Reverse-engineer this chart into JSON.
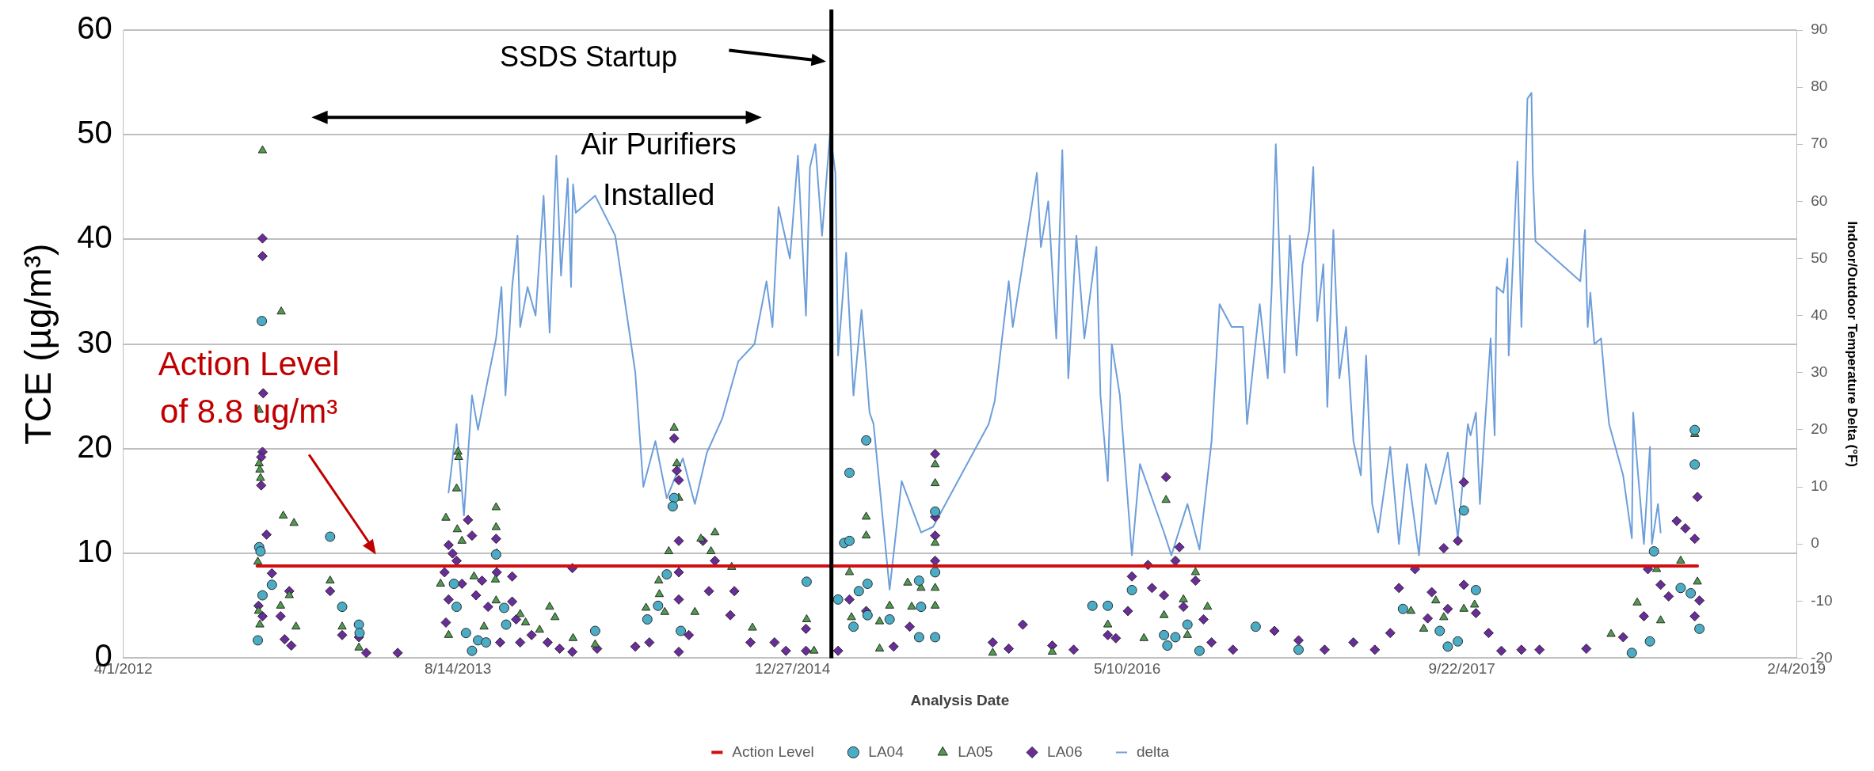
{
  "chart_data": {
    "type": "scatter",
    "xlabel": "Analysis Date",
    "ylabel": "TCE (µg/m³)",
    "y2label": "Indoor/Outdoor Temperature Delta (°F)",
    "annotations": [
      "Air Purifiers\nInstalled",
      "Action Level\nof 8.8 ug/m³",
      "SSDS Startup"
    ],
    "ref_lines": [
      {
        "axis": "x",
        "value": "2015-02-23",
        "color": "#000000"
      }
    ],
    "xlim": [
      "2012-04-01",
      "2019-02-04"
    ],
    "xticks": [
      {
        "value": "2012-04-01",
        "label": "4/1/2012"
      },
      {
        "value": "2013-08-14",
        "label": "8/14/2013"
      },
      {
        "value": "2014-12-27",
        "label": "12/27/2014"
      },
      {
        "value": "2016-05-10",
        "label": "5/10/2016"
      },
      {
        "value": "2017-09-22",
        "label": "9/22/2017"
      },
      {
        "value": "2019-02-04",
        "label": "2/4/2019"
      }
    ],
    "ylim": [
      0,
      60
    ],
    "yticks": [
      0,
      10,
      20,
      30,
      40,
      50,
      60
    ],
    "y2lim": [
      -20,
      90
    ],
    "y2ticks": [
      -20,
      -10,
      0,
      10,
      20,
      30,
      40,
      50,
      60,
      70,
      80,
      90
    ],
    "grid": "y",
    "legend": "bottom",
    "series": [
      {
        "name": "Action Level",
        "type": "line",
        "color": "#d01010",
        "x": [
          "2012-10-18",
          "2018-09-09"
        ],
        "values": [
          8.8,
          8.8
        ]
      },
      {
        "name": "LA04",
        "marker": "circle",
        "color": "#4bacc6",
        "x": [
          "2012-10-25",
          "2012-10-21",
          "2012-10-23",
          "2012-10-19",
          "2012-11-09",
          "2012-10-26",
          "2013-02-04",
          "2013-02-22",
          "2013-03-19",
          "2013-03-20",
          "2013-08-08",
          "2013-08-12",
          "2013-08-26",
          "2013-09-04",
          "2013-09-13",
          "2013-09-25",
          "2013-10-10",
          "2013-10-22",
          "2013-10-25",
          "2014-03-07",
          "2014-07-03",
          "2014-07-01",
          "2014-06-22",
          "2014-06-09",
          "2014-05-24",
          "2014-07-13",
          "2015-01-17",
          "2015-03-05",
          "2015-03-14",
          "2015-03-22",
          "2015-03-22",
          "2015-04-16",
          "2015-04-05",
          "2015-04-18",
          "2015-04-18",
          "2015-03-28",
          "2015-05-21",
          "2015-07-04",
          "2015-07-07",
          "2015-07-28",
          "2015-07-28",
          "2015-07-28",
          "2015-07-04",
          "2016-03-19",
          "2016-04-11",
          "2016-05-17",
          "2016-07-04",
          "2016-07-21",
          "2016-07-09",
          "2016-08-08",
          "2016-08-26",
          "2016-11-18",
          "2017-01-21",
          "2017-06-26",
          "2017-09-25",
          "2017-09-01",
          "2017-10-13",
          "2017-09-16",
          "2017-08-20",
          "2018-06-03",
          "2018-06-30",
          "2018-07-06",
          "2018-08-15",
          "2018-08-30",
          "2018-09-05",
          "2018-09-05",
          "2018-09-12"
        ],
        "values": [
          32.2,
          10.6,
          10.2,
          1.7,
          7.0,
          6.0,
          11.6,
          4.9,
          3.2,
          2.4,
          7.1,
          4.9,
          2.4,
          0.7,
          1.7,
          1.5,
          9.9,
          4.8,
          3.2,
          2.6,
          15.3,
          14.5,
          8.0,
          5.0,
          3.7,
          2.6,
          7.3,
          5.6,
          11.0,
          11.2,
          17.7,
          20.8,
          6.4,
          7.1,
          4.1,
          3.0,
          3.7,
          7.4,
          4.9,
          14.0,
          8.2,
          2.0,
          2.0,
          5.0,
          5.0,
          6.5,
          2.2,
          2.0,
          1.2,
          3.2,
          0.7,
          3.0,
          0.8,
          4.7,
          14.1,
          1.1,
          6.5,
          1.6,
          2.6,
          0.5,
          1.6,
          10.2,
          6.7,
          6.2,
          18.5,
          21.8,
          2.8
        ]
      },
      {
        "name": "LA05",
        "marker": "triangle",
        "color": "#4e9a4e",
        "x": [
          "2012-10-26",
          "2012-11-23",
          "2012-10-21",
          "2012-10-21",
          "2012-10-22",
          "2012-10-23",
          "2012-11-26",
          "2012-12-12",
          "2012-10-19",
          "2012-10-20",
          "2012-10-22",
          "2012-11-22",
          "2012-12-05",
          "2012-12-15",
          "2013-02-04",
          "2013-02-22",
          "2013-03-19",
          "2013-08-14",
          "2013-08-15",
          "2013-08-12",
          "2013-07-27",
          "2013-08-13",
          "2013-08-20",
          "2013-07-19",
          "2013-07-31",
          "2013-09-07",
          "2013-10-10",
          "2013-10-10",
          "2013-10-11",
          "2013-10-09",
          "2013-10-10",
          "2013-11-15",
          "2013-11-23",
          "2013-12-14",
          "2013-12-29",
          "2014-01-06",
          "2014-02-02",
          "2014-03-07",
          "2013-09-22",
          "2014-07-03",
          "2014-07-07",
          "2014-07-10",
          "2014-06-25",
          "2014-06-10",
          "2014-06-11",
          "2014-05-22",
          "2014-06-19",
          "2014-08-12",
          "2014-08-27",
          "2014-09-02",
          "2014-09-27",
          "2014-08-03",
          "2014-10-28",
          "2015-01-17",
          "2015-01-28",
          "2015-03-22",
          "2015-04-16",
          "2015-04-16",
          "2015-03-25",
          "2015-05-06",
          "2015-05-21",
          "2015-06-17",
          "2015-06-23",
          "2015-07-07",
          "2015-07-28",
          "2015-07-28",
          "2015-07-28",
          "2015-07-28",
          "2015-07-28",
          "2015-05-06",
          "2015-10-22",
          "2016-01-19",
          "2016-04-11",
          "2016-06-04",
          "2016-07-07",
          "2016-07-04",
          "2016-08-02",
          "2016-08-20",
          "2016-09-07",
          "2016-08-08",
          "2017-07-08",
          "2017-07-27",
          "2017-08-14",
          "2017-08-26",
          "2017-09-25",
          "2017-10-11",
          "2018-05-03",
          "2018-06-11",
          "2018-07-10",
          "2018-07-16",
          "2018-08-15",
          "2018-09-09",
          "2018-09-05"
        ],
        "values": [
          48.5,
          33.1,
          23.7,
          18.6,
          18.0,
          17.2,
          13.6,
          12.9,
          9.2,
          4.5,
          3.2,
          5.0,
          6.0,
          3.0,
          7.4,
          3.0,
          1.0,
          19.7,
          19.2,
          16.2,
          13.4,
          12.3,
          11.2,
          7.1,
          2.2,
          7.8,
          14.4,
          12.5,
          10.0,
          7.5,
          5.5,
          4.2,
          3.4,
          2.7,
          4.9,
          3.9,
          1.9,
          1.3,
          3.0,
          22.0,
          18.6,
          15.3,
          10.2,
          7.4,
          6.1,
          4.8,
          4.4,
          11.4,
          10.2,
          12.0,
          8.7,
          4.4,
          2.9,
          3.7,
          0.7,
          8.2,
          13.5,
          11.7,
          3.9,
          3.5,
          5.0,
          7.2,
          4.9,
          6.7,
          18.5,
          16.7,
          11.0,
          6.7,
          5.0,
          0.9,
          0.5,
          0.6,
          3.2,
          1.9,
          15.1,
          4.1,
          5.6,
          8.2,
          4.9,
          2.2,
          4.5,
          2.8,
          5.5,
          3.9,
          4.7,
          5.1,
          2.3,
          5.3,
          8.5,
          3.6,
          9.3,
          7.3,
          21.4
        ]
      },
      {
        "name": "LA06",
        "marker": "diamond",
        "color": "#6a2c9a",
        "x": [
          "2012-10-26",
          "2012-10-26",
          "2012-10-27",
          "2012-10-26",
          "2012-10-24",
          "2012-10-24",
          "2012-11-01",
          "2012-11-09",
          "2012-10-20",
          "2012-10-26",
          "2012-11-22",
          "2012-12-05",
          "2012-11-28",
          "2012-12-08",
          "2013-02-04",
          "2013-02-22",
          "2013-03-19",
          "2013-03-30",
          "2013-05-16",
          "2013-07-31",
          "2013-08-06",
          "2013-08-12",
          "2013-07-25",
          "2013-08-20",
          "2013-07-31",
          "2013-07-27",
          "2013-08-29",
          "2013-09-04",
          "2013-09-10",
          "2013-09-19",
          "2013-09-28",
          "2013-10-10",
          "2013-10-11",
          "2013-10-16",
          "2013-11-03",
          "2013-11-03",
          "2013-11-09",
          "2013-11-15",
          "2013-12-02",
          "2013-12-26",
          "2014-01-13",
          "2014-02-01",
          "2014-02-01",
          "2014-03-10",
          "2014-07-03",
          "2014-07-07",
          "2014-07-10",
          "2014-07-10",
          "2014-07-10",
          "2014-07-10",
          "2014-07-25",
          "2014-07-10",
          "2014-08-15",
          "2014-08-24",
          "2014-09-02",
          "2014-10-01",
          "2014-09-25",
          "2014-05-27",
          "2014-05-06",
          "2014-10-25",
          "2014-11-30",
          "2014-12-17",
          "2015-01-16",
          "2015-01-16",
          "2015-03-05",
          "2015-03-22",
          "2015-04-16",
          "2015-05-27",
          "2015-06-20",
          "2015-07-28",
          "2015-07-28",
          "2015-07-28",
          "2015-07-28",
          "2015-10-22",
          "2015-11-15",
          "2015-12-06",
          "2016-01-19",
          "2016-02-20",
          "2016-04-11",
          "2016-04-23",
          "2016-05-11",
          "2016-05-17",
          "2016-06-10",
          "2016-06-16",
          "2016-07-04",
          "2016-07-07",
          "2016-07-21",
          "2016-07-27",
          "2016-08-02",
          "2016-08-20",
          "2016-09-01",
          "2016-09-13",
          "2016-10-15",
          "2016-12-16",
          "2017-01-21",
          "2017-03-01",
          "2017-04-13",
          "2017-05-15",
          "2017-06-07",
          "2017-06-20",
          "2017-07-14",
          "2017-08-02",
          "2017-08-08",
          "2017-08-26",
          "2017-09-01",
          "2017-09-16",
          "2017-09-25",
          "2017-09-25",
          "2017-10-13",
          "2017-11-01",
          "2017-11-20",
          "2017-12-20",
          "2018-01-16",
          "2018-03-27",
          "2018-05-21",
          "2018-06-21",
          "2018-06-27",
          "2018-07-16",
          "2018-07-28",
          "2018-08-09",
          "2018-08-22",
          "2018-09-05",
          "2018-09-09",
          "2018-09-12",
          "2018-09-05"
        ],
        "values": [
          40.1,
          38.4,
          25.3,
          19.7,
          19.2,
          16.5,
          11.8,
          8.1,
          5.0,
          4.0,
          4.0,
          6.4,
          1.8,
          1.2,
          6.4,
          2.2,
          2.0,
          0.5,
          0.5,
          10.8,
          10.0,
          9.3,
          8.2,
          7.1,
          5.6,
          3.4,
          13.2,
          11.7,
          6.0,
          7.4,
          4.9,
          11.4,
          8.2,
          1.5,
          7.8,
          5.4,
          3.7,
          1.5,
          2.2,
          1.5,
          0.9,
          0.6,
          8.6,
          0.9,
          21.0,
          17.9,
          17.0,
          11.2,
          8.2,
          5.6,
          2.2,
          0.6,
          11.2,
          6.4,
          9.3,
          6.4,
          4.1,
          1.5,
          1.1,
          1.5,
          1.5,
          0.7,
          2.8,
          0.7,
          0.7,
          5.6,
          4.5,
          1.1,
          3.0,
          19.5,
          13.5,
          11.7,
          9.3,
          1.5,
          0.9,
          3.2,
          1.2,
          0.8,
          2.2,
          1.9,
          4.5,
          7.8,
          8.9,
          6.7,
          6.0,
          17.3,
          9.3,
          10.6,
          4.9,
          7.4,
          3.7,
          1.5,
          0.8,
          2.6,
          1.7,
          0.8,
          1.5,
          0.8,
          2.4,
          6.7,
          8.5,
          3.8,
          6.3,
          10.5,
          4.7,
          11.2,
          16.8,
          7.0,
          4.3,
          2.4,
          0.7,
          0.8,
          0.8,
          0.9,
          2.0,
          4.0,
          8.5,
          7.0,
          5.9,
          13.1,
          12.4,
          11.4,
          15.4,
          5.5,
          4.0
        ]
      },
      {
        "name": "delta",
        "type": "line",
        "axis": "y2",
        "color": "#6d9eda",
        "x": [
          "2013-07-31",
          "2013-08-12",
          "2013-08-23",
          "2013-09-04",
          "2013-09-13",
          "2013-09-28",
          "2013-10-10",
          "2013-10-18",
          "2013-10-24",
          "2013-11-03",
          "2013-11-11",
          "2013-11-15",
          "2013-11-26",
          "2013-12-08",
          "2013-12-20",
          "2013-12-29",
          "2014-01-08",
          "2014-01-15",
          "2014-01-25",
          "2014-01-30",
          "2014-02-02",
          "2014-02-06",
          "2014-03-07",
          "2014-04-06",
          "2014-05-06",
          "2014-05-12",
          "2014-05-18",
          "2014-06-05",
          "2014-06-22",
          "2014-07-16",
          "2014-08-03",
          "2014-08-21",
          "2014-09-13",
          "2014-10-07",
          "2014-10-31",
          "2014-11-18",
          "2014-11-27",
          "2014-12-06",
          "2014-12-23",
          "2015-01-04",
          "2015-01-16",
          "2015-01-22",
          "2015-01-30",
          "2015-02-09",
          "2015-02-21",
          "2015-03-01",
          "2015-03-05",
          "2015-03-17",
          "2015-03-28",
          "2015-04-09",
          "2015-04-21",
          "2015-04-27",
          "2015-05-21",
          "2015-06-08",
          "2015-07-07",
          "2015-07-25",
          "2015-10-16",
          "2015-10-25",
          "2015-11-15",
          "2015-11-21",
          "2015-12-03",
          "2015-12-27",
          "2016-01-02",
          "2016-01-13",
          "2016-01-25",
          "2016-02-03",
          "2016-02-12",
          "2016-02-24",
          "2016-03-07",
          "2016-03-25",
          "2016-03-31",
          "2016-04-11",
          "2016-04-17",
          "2016-04-29",
          "2016-05-17",
          "2016-05-29",
          "2016-07-04",
          "2016-07-15",
          "2016-08-08",
          "2016-08-26",
          "2016-09-13",
          "2016-09-25",
          "2016-10-13",
          "2016-10-30",
          "2016-11-05",
          "2016-11-24",
          "2016-12-06",
          "2016-12-12",
          "2016-12-18",
          "2016-12-25",
          "2016-12-31",
          "2017-01-08",
          "2017-01-18",
          "2017-01-27",
          "2017-02-06",
          "2017-02-12",
          "2017-02-18",
          "2017-02-27",
          "2017-03-05",
          "2017-03-14",
          "2017-03-23",
          "2017-04-02",
          "2017-04-13",
          "2017-04-24",
          "2017-05-02",
          "2017-05-11",
          "2017-05-20",
          "2017-06-07",
          "2017-06-20",
          "2017-07-02",
          "2017-07-20",
          "2017-07-30",
          "2017-08-14",
          "2017-09-01",
          "2017-09-16",
          "2017-10-01",
          "2017-10-05",
          "2017-10-13",
          "2017-10-19",
          "2017-10-26",
          "2017-11-04",
          "2017-11-10",
          "2017-11-13",
          "2017-11-23",
          "2017-11-29",
          "2017-12-01",
          "2017-12-14",
          "2017-12-20",
          "2017-12-29",
          "2018-01-04",
          "2018-01-06",
          "2018-01-10",
          "2018-03-18",
          "2018-03-25",
          "2018-03-29",
          "2018-04-02",
          "2018-04-08",
          "2018-04-18",
          "2018-04-24",
          "2018-04-30",
          "2018-05-21",
          "2018-06-03",
          "2018-06-05",
          "2018-06-11",
          "2018-06-21",
          "2018-06-30",
          "2018-07-03",
          "2018-07-12",
          "2018-07-16"
        ],
        "values": [
          9,
          21,
          5,
          26,
          20,
          29,
          36,
          45,
          26,
          45,
          54,
          38,
          45,
          40,
          61,
          37,
          68,
          47,
          64,
          45,
          63,
          58,
          61,
          54,
          30,
          20,
          10,
          18,
          8,
          15,
          7,
          16,
          22,
          32,
          35,
          46,
          38,
          59,
          50,
          68,
          40,
          66,
          70,
          54,
          72,
          65,
          33,
          51,
          26,
          41,
          23,
          21,
          -8,
          11,
          2,
          3,
          21,
          25,
          46,
          38,
          47,
          65,
          52,
          60,
          36,
          69,
          29,
          54,
          36,
          52,
          26,
          11,
          35,
          26,
          -2,
          14,
          2,
          -2,
          7,
          -1,
          18,
          42,
          38,
          38,
          21,
          42,
          29,
          45,
          70,
          45,
          30,
          54,
          33,
          49,
          55,
          66,
          39,
          49,
          24,
          55,
          29,
          38,
          18,
          12,
          33,
          7,
          2,
          17,
          0,
          14,
          -2,
          14,
          7,
          16,
          1,
          21,
          19,
          23,
          7,
          20,
          36,
          19,
          45,
          44,
          50,
          33,
          67,
          38,
          78,
          79,
          65,
          53,
          46,
          55,
          38,
          44,
          35,
          36,
          28,
          21,
          12,
          1,
          23,
          14,
          0,
          17,
          0,
          7,
          2
        ]
      }
    ]
  }
}
